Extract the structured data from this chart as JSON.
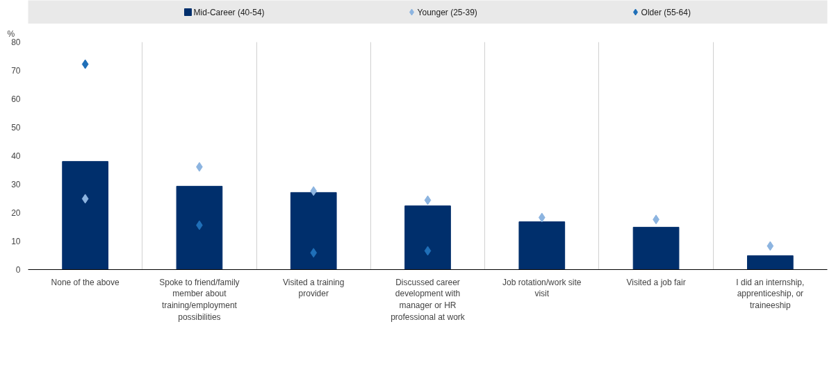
{
  "chart_data": {
    "type": "bar",
    "categories": [
      "None of the above",
      "Spoke to friend/family member about training/employment possibilities",
      "Visited a training provider",
      "Discussed career development with manager or HR professional at work",
      "Job rotation/work site visit",
      "Visited a job fair",
      "I did an internship, apprenticeship, or traineeship"
    ],
    "series": [
      {
        "name": "Mid-Career (40-54)",
        "color": "#002f6c",
        "values": [
          38,
          29.3,
          27.1,
          22.4,
          16.8,
          14.9,
          4.9
        ]
      },
      {
        "name": "Younger (25-39)",
        "type": "scatter",
        "marker": "diamond",
        "color": "#8cb4e0",
        "values": [
          24.9,
          36.1,
          27.6,
          24.4,
          18.3,
          17.6,
          8.3
        ]
      },
      {
        "name": "Older (55-64)",
        "type": "scatter",
        "marker": "diamond",
        "color": "#1f6fb8",
        "values": [
          72.2,
          15.6,
          5.9,
          6.6,
          null,
          null,
          null
        ]
      }
    ],
    "ylabel": "%",
    "ylim": [
      0,
      80
    ],
    "yticks": [
      0,
      10,
      20,
      30,
      40,
      50,
      60,
      70,
      80
    ],
    "grid": "x",
    "legend": "top"
  }
}
